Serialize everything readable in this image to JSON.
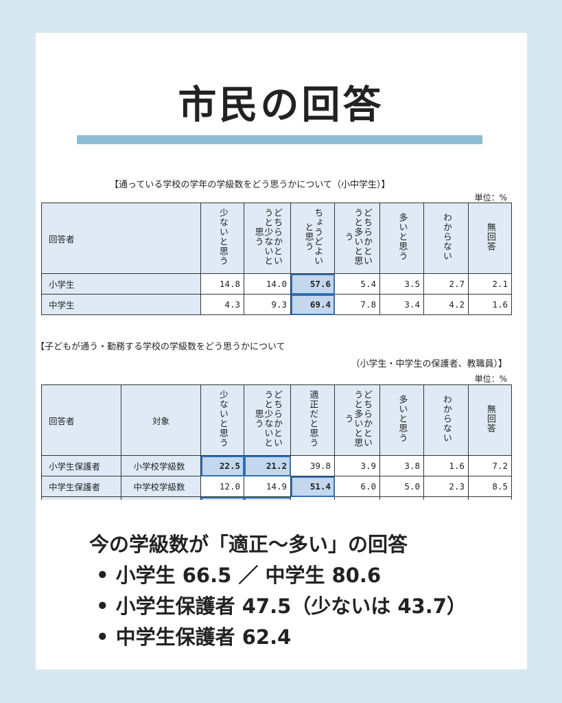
{
  "title": "市民の回答",
  "table1": {
    "caption": "【通っている学校の学年の学級数をどう思うかについて（小中学生）】",
    "unit": "単位：%",
    "headers": [
      "回答者",
      "少ないと思う",
      "どちらかというと少ないと思う",
      "ちょうどよいと思う",
      "どちらかというと多いと思う",
      "多いと思う",
      "わからない",
      "無回答"
    ],
    "rows": [
      {
        "label": "小学生",
        "values": [
          "14.8",
          "14.0",
          "57.6",
          "5.4",
          "3.5",
          "2.7",
          "2.1"
        ],
        "highlight": [
          2
        ]
      },
      {
        "label": "中学生",
        "values": [
          "4.3",
          "9.3",
          "69.4",
          "7.8",
          "3.4",
          "4.2",
          "1.6"
        ],
        "highlight": [
          2
        ]
      }
    ]
  },
  "table2": {
    "caption": "【子どもが通う・勤務する学校の学級数をどう思うかについて",
    "caption2": "（小学生・中学生の保護者、教職員）】",
    "unit": "単位：%",
    "headers": [
      "回答者",
      "対象",
      "少ないと思う",
      "どちらかというと少ないと思う",
      "適正だと思う",
      "どちらかというと多いと思う",
      "多いと思う",
      "わからない",
      "無回答"
    ],
    "rows": [
      {
        "label": "小学生保護者",
        "target": "小学校学級数",
        "values": [
          "22.5",
          "21.2",
          "39.8",
          "3.9",
          "3.8",
          "1.6",
          "7.2"
        ],
        "highlight": [
          0,
          1
        ]
      },
      {
        "label": "中学生保護者",
        "target": "中学校学級数",
        "values": [
          "12.0",
          "14.9",
          "51.4",
          "6.0",
          "5.0",
          "2.3",
          "8.5"
        ],
        "highlight": [
          2
        ]
      }
    ]
  },
  "summary": {
    "heading": "今の学級数が「適正〜多い」の回答",
    "items": [
      "• 小学生 66.5 ／ 中学生 80.6",
      "• 小学生保護者 47.5（少ないは 43.7）",
      "• 中学生保護者 62.4"
    ]
  },
  "colors": {
    "background": "#d7e7f1",
    "accent_bar": "#8dbdd4",
    "header_fill": "#dfeaf6",
    "highlight_fill": "#c3d8ee",
    "highlight_border": "#2f6fb5"
  }
}
